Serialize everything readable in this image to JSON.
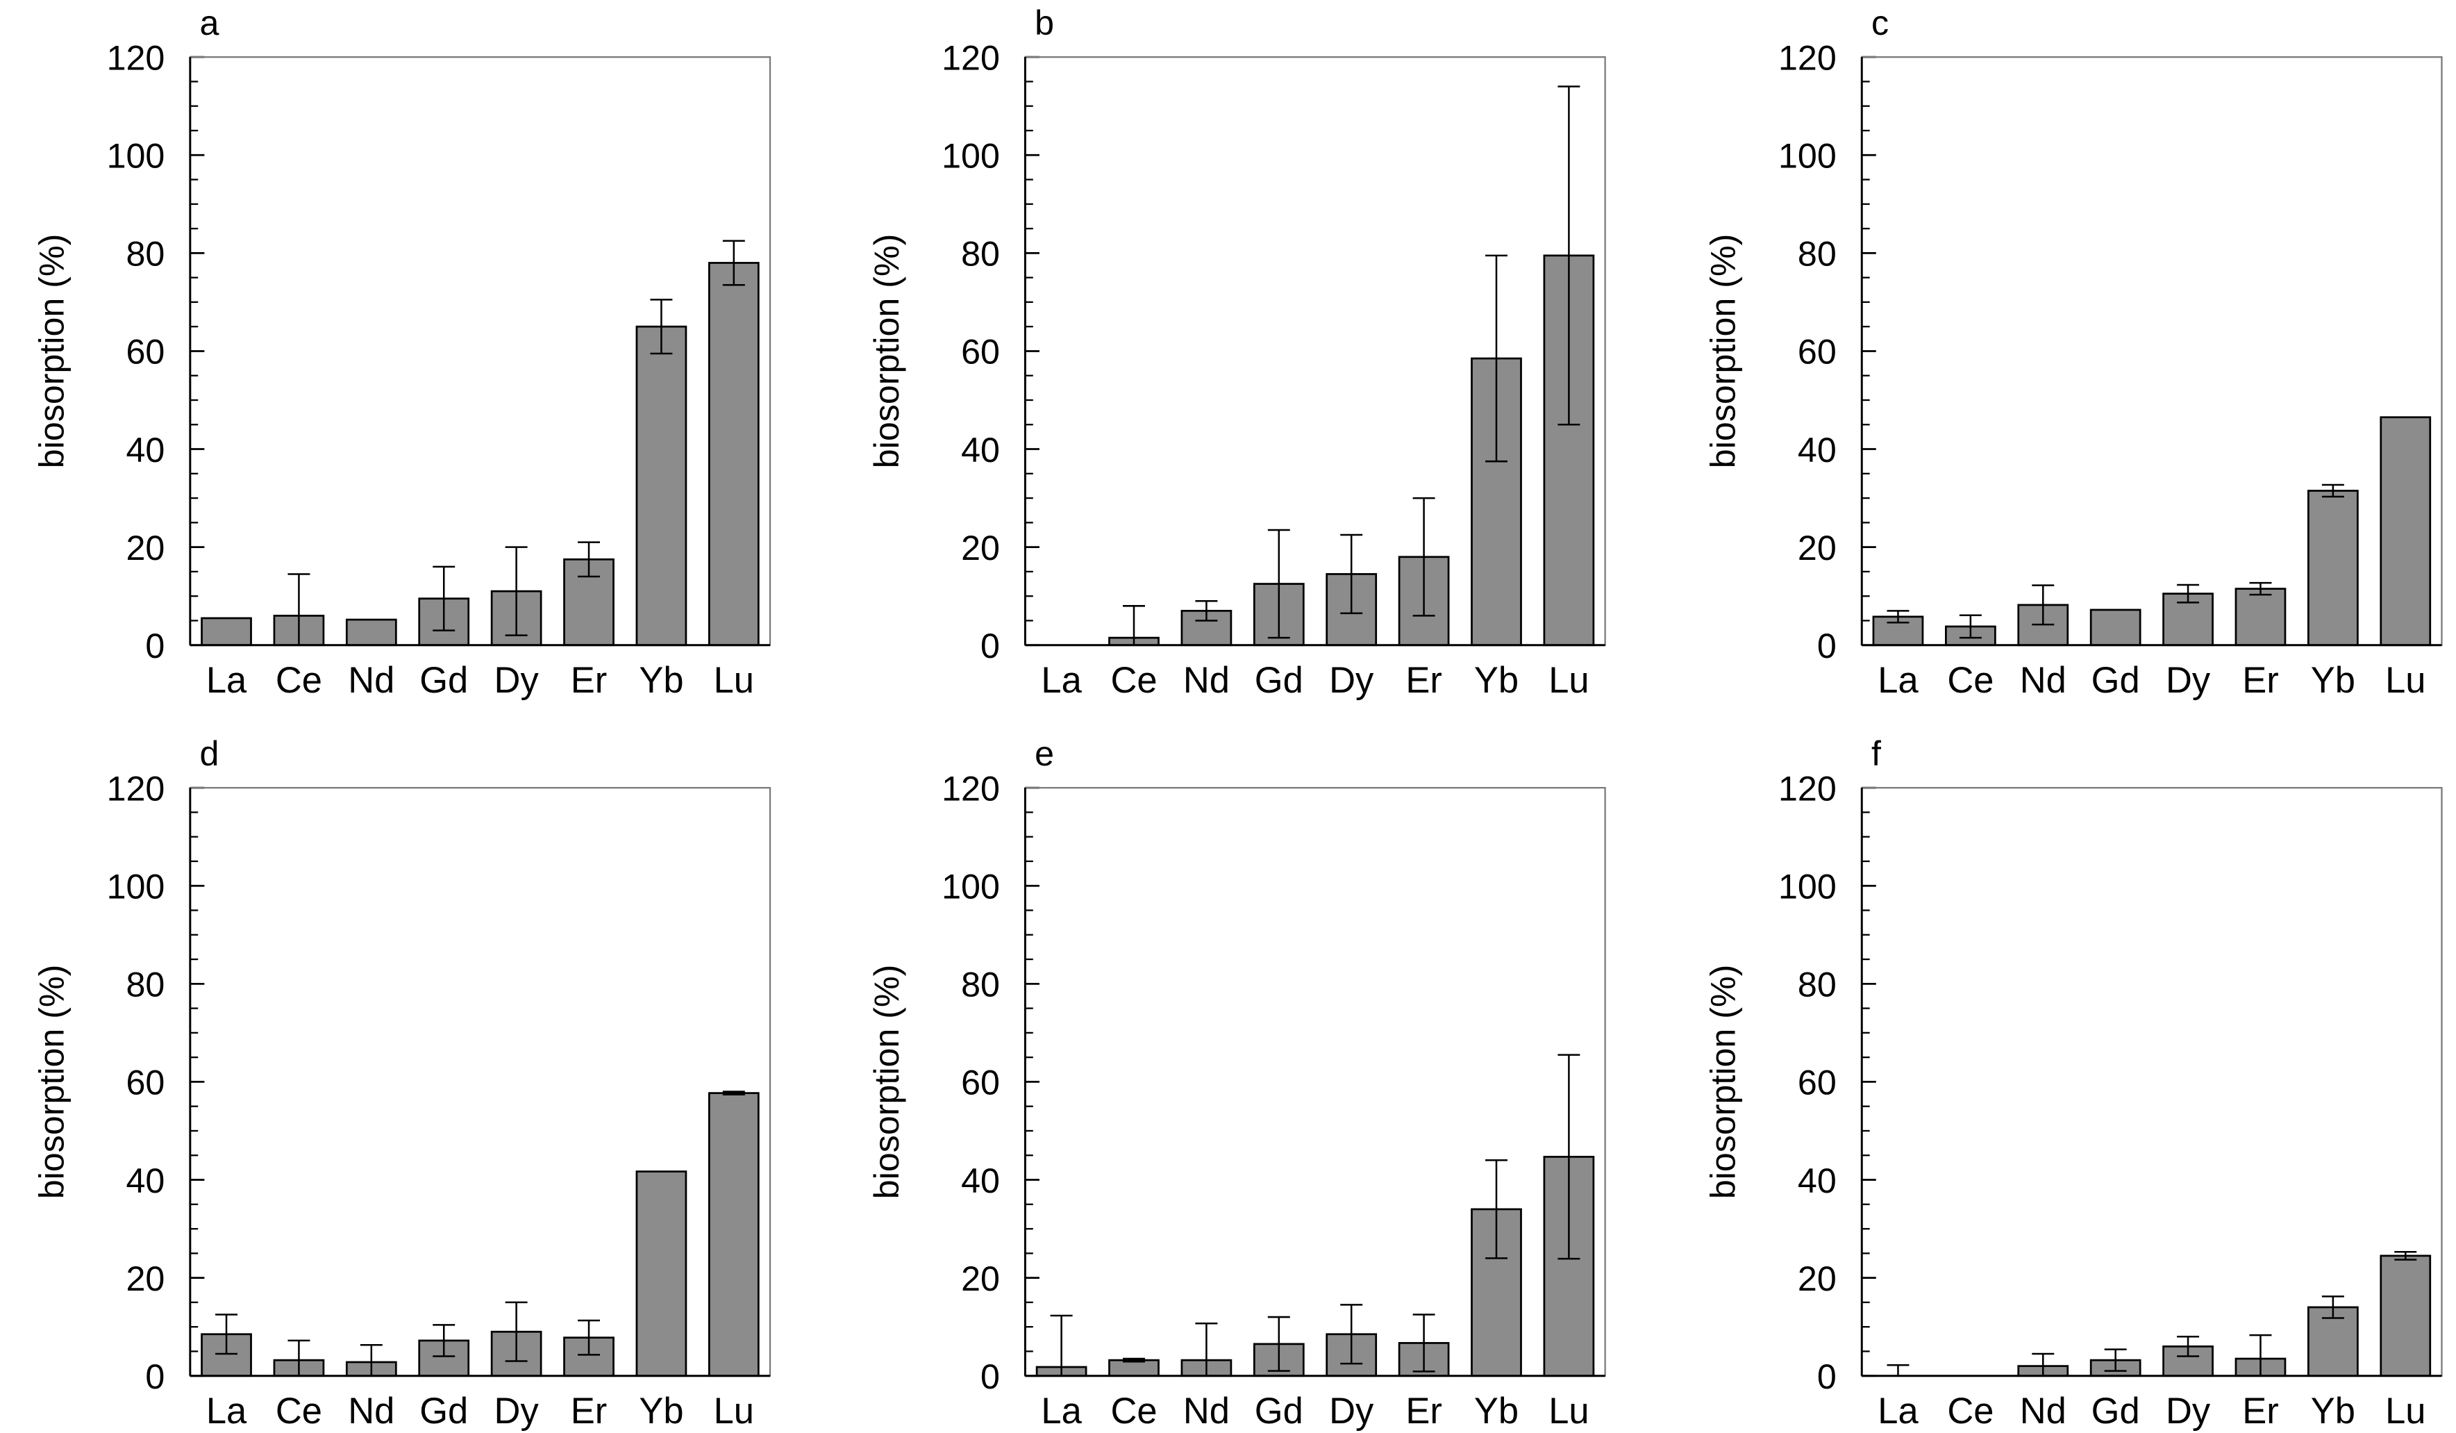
{
  "figure": {
    "bar_color": "#8c8c8c",
    "edge_color": "#000000",
    "error_color": "#000000"
  },
  "chart_data": [
    {
      "panel": "a",
      "type": "bar",
      "ylabel": "biosorption (%)",
      "xlabel": "",
      "ylim": [
        0,
        120
      ],
      "yticks": [
        0,
        20,
        40,
        60,
        80,
        100,
        120
      ],
      "categories": [
        "La",
        "Ce",
        "Nd",
        "Gd",
        "Dy",
        "Er",
        "Yb",
        "Lu"
      ],
      "values": [
        5.5,
        6,
        5.2,
        9.5,
        11,
        17.5,
        65,
        78
      ],
      "errors": [
        null,
        8.5,
        null,
        6.5,
        9,
        3.5,
        5.5,
        4.5
      ]
    },
    {
      "panel": "b",
      "type": "bar",
      "ylabel": "biosorption (%)",
      "xlabel": "",
      "ylim": [
        0,
        120
      ],
      "yticks": [
        0,
        20,
        40,
        60,
        80,
        100,
        120
      ],
      "categories": [
        "La",
        "Ce",
        "Nd",
        "Gd",
        "Dy",
        "Er",
        "Yb",
        "Lu"
      ],
      "values": [
        0,
        1.5,
        7,
        12.5,
        14.5,
        18,
        58.5,
        79.5
      ],
      "errors": [
        null,
        6.5,
        2,
        11,
        8,
        12,
        21,
        34.5
      ]
    },
    {
      "panel": "c",
      "type": "bar",
      "ylabel": "biosorption (%)",
      "xlabel": "",
      "ylim": [
        0,
        120
      ],
      "yticks": [
        0,
        20,
        40,
        60,
        80,
        100,
        120
      ],
      "categories": [
        "La",
        "Ce",
        "Nd",
        "Gd",
        "Dy",
        "Er",
        "Yb",
        "Lu"
      ],
      "values": [
        5.8,
        3.8,
        8.2,
        7.2,
        10.5,
        11.5,
        31.5,
        46.5
      ],
      "errors": [
        1.2,
        2.3,
        4,
        null,
        1.8,
        1.2,
        1.2,
        null
      ]
    },
    {
      "panel": "d",
      "type": "bar",
      "ylabel": "biosorption (%)",
      "xlabel": "",
      "ylim": [
        0,
        120
      ],
      "yticks": [
        0,
        20,
        40,
        60,
        80,
        100,
        120
      ],
      "categories": [
        "La",
        "Ce",
        "Nd",
        "Gd",
        "Dy",
        "Er",
        "Yb",
        "Lu"
      ],
      "values": [
        8.5,
        3.2,
        2.8,
        7.2,
        9,
        7.8,
        41.7,
        57.7
      ],
      "errors": [
        4,
        4,
        3.5,
        3.2,
        6,
        3.5,
        null,
        0.3
      ]
    },
    {
      "panel": "e",
      "type": "bar",
      "ylabel": "biosorption (%)",
      "xlabel": "",
      "ylim": [
        0,
        120
      ],
      "yticks": [
        0,
        20,
        40,
        60,
        80,
        100,
        120
      ],
      "categories": [
        "La",
        "Ce",
        "Nd",
        "Gd",
        "Dy",
        "Er",
        "Yb",
        "Lu"
      ],
      "values": [
        1.8,
        3.2,
        3.2,
        6.5,
        8.5,
        6.7,
        34,
        44.7
      ],
      "errors": [
        10.5,
        0.3,
        7.5,
        5.5,
        6,
        5.8,
        10,
        20.8
      ]
    },
    {
      "panel": "f",
      "type": "bar",
      "ylabel": "biosorption (%)",
      "xlabel": "",
      "ylim": [
        0,
        120
      ],
      "yticks": [
        0,
        20,
        40,
        60,
        80,
        100,
        120
      ],
      "categories": [
        "La",
        "Ce",
        "Nd",
        "Gd",
        "Dy",
        "Er",
        "Yb",
        "Lu"
      ],
      "values": [
        0,
        0,
        2,
        3.2,
        6,
        3.5,
        14,
        24.5
      ],
      "errors": [
        2.2,
        null,
        2.5,
        2.2,
        2,
        4.8,
        2.2,
        0.8
      ]
    }
  ]
}
